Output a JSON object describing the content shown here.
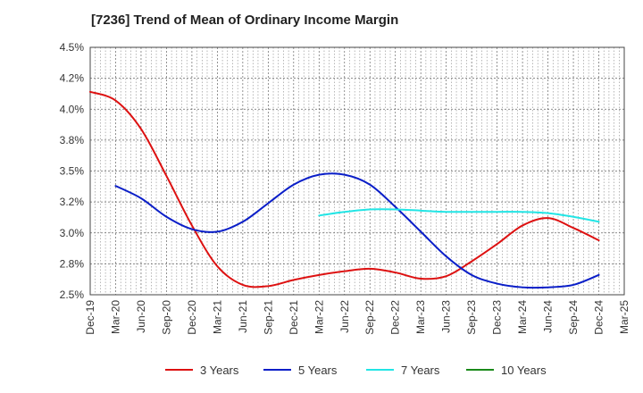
{
  "chart_data": {
    "type": "line",
    "title": "[7236]  Trend of Mean of Ordinary Income Margin",
    "xlabel": "",
    "ylabel": "",
    "ylim": [
      2.5,
      4.5
    ],
    "yticks": [
      2.5,
      2.75,
      3.0,
      3.25,
      3.5,
      3.75,
      4.0,
      4.25,
      4.5
    ],
    "ytick_labels": [
      "2.5%",
      "2.8%",
      "3.0%",
      "3.2%",
      "3.5%",
      "3.8%",
      "4.0%",
      "4.2%",
      "4.5%"
    ],
    "categories": [
      "Dec-19",
      "Mar-20",
      "Jun-20",
      "Sep-20",
      "Dec-20",
      "Mar-21",
      "Jun-21",
      "Sep-21",
      "Dec-21",
      "Mar-22",
      "Jun-22",
      "Sep-22",
      "Dec-22",
      "Mar-23",
      "Jun-23",
      "Sep-23",
      "Dec-23",
      "Mar-24",
      "Jun-24",
      "Sep-24",
      "Dec-24",
      "Mar-25"
    ],
    "grid": true,
    "legend_position": "bottom",
    "series": [
      {
        "name": "3 Years",
        "color": "#dd1111",
        "values": [
          4.14,
          4.07,
          3.84,
          3.46,
          3.06,
          2.73,
          2.58,
          2.57,
          2.62,
          2.66,
          2.69,
          2.71,
          2.68,
          2.63,
          2.65,
          2.77,
          2.91,
          3.06,
          3.12,
          3.04,
          2.94,
          null
        ]
      },
      {
        "name": "5 Years",
        "color": "#0a1ec8",
        "values": [
          null,
          3.38,
          3.28,
          3.13,
          3.03,
          3.01,
          3.09,
          3.24,
          3.39,
          3.47,
          3.47,
          3.39,
          3.21,
          3.01,
          2.81,
          2.66,
          2.59,
          2.56,
          2.56,
          2.58,
          2.66,
          null
        ]
      },
      {
        "name": "7 Years",
        "color": "#22e5e5",
        "values": [
          null,
          null,
          null,
          null,
          null,
          null,
          null,
          null,
          null,
          3.14,
          3.17,
          3.19,
          3.19,
          3.18,
          3.17,
          3.17,
          3.17,
          3.17,
          3.16,
          3.13,
          3.09,
          null
        ]
      },
      {
        "name": "10 Years",
        "color": "#1a8a1a",
        "values": [
          null,
          null,
          null,
          null,
          null,
          null,
          null,
          null,
          null,
          null,
          null,
          null,
          null,
          null,
          null,
          null,
          null,
          null,
          null,
          null,
          null,
          null
        ]
      }
    ]
  }
}
